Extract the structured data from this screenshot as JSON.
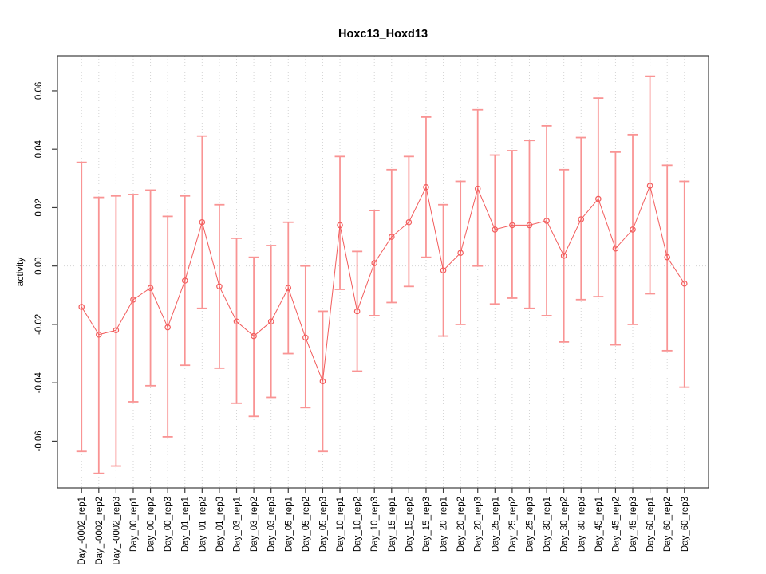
{
  "page": {
    "background": "#ffffff"
  },
  "chart_data": {
    "type": "line",
    "title": "Hoxc13_Hoxd13",
    "xlabel": "",
    "ylabel": "activity",
    "ylim": [
      -0.076,
      0.072
    ],
    "y_ticks": [
      -0.06,
      -0.04,
      -0.02,
      0,
      0.02,
      0.04,
      0.06
    ],
    "grid": "dotted light-gray vertical line at every category; dotted horizontal line at y=0",
    "legend": "none",
    "point_style": "open-circle",
    "error_bars": true,
    "categories": [
      "Day_-0002_rep1",
      "Day_-0002_rep2",
      "Day_-0002_rep3",
      "Day_00_rep1",
      "Day_00_rep2",
      "Day_00_rep3",
      "Day_01_rep1",
      "Day_01_rep2",
      "Day_01_rep3",
      "Day_03_rep1",
      "Day_03_rep2",
      "Day_03_rep3",
      "Day_05_rep1",
      "Day_05_rep2",
      "Day_05_rep3",
      "Day_10_rep1",
      "Day_10_rep2",
      "Day_10_rep3",
      "Day_15_rep1",
      "Day_15_rep2",
      "Day_15_rep3",
      "Day_20_rep1",
      "Day_20_rep2",
      "Day_20_rep3",
      "Day_25_rep1",
      "Day_25_rep2",
      "Day_25_rep3",
      "Day_30_rep1",
      "Day_30_rep2",
      "Day_30_rep3",
      "Day_45_rep1",
      "Day_45_rep2",
      "Day_45_rep3",
      "Day_60_rep1",
      "Day_60_rep2",
      "Day_60_rep3"
    ],
    "series": [
      {
        "name": "activity",
        "values": [
          -0.014,
          -0.0235,
          -0.022,
          -0.0115,
          -0.0075,
          -0.021,
          -0.005,
          0.015,
          -0.007,
          -0.019,
          -0.024,
          -0.019,
          -0.0075,
          -0.0245,
          -0.0395,
          0.014,
          -0.0155,
          0.001,
          0.01,
          0.015,
          0.027,
          -0.0015,
          0.0045,
          0.0265,
          0.0125,
          0.014,
          0.014,
          0.0155,
          0.0035,
          0.016,
          0.023,
          0.006,
          0.0125,
          0.0275,
          0.003,
          -0.006
        ],
        "err_high": [
          0.0355,
          0.0235,
          0.024,
          0.0245,
          0.026,
          0.017,
          0.024,
          0.0445,
          0.021,
          0.0095,
          0.003,
          0.007,
          0.015,
          0.0,
          -0.0155,
          0.0375,
          0.005,
          0.019,
          0.033,
          0.0375,
          0.051,
          0.021,
          0.029,
          0.0535,
          0.038,
          0.0395,
          0.043,
          0.048,
          0.033,
          0.044,
          0.0575,
          0.039,
          0.045,
          0.065,
          0.0345,
          0.029
        ],
        "err_low": [
          -0.0635,
          -0.071,
          -0.0685,
          -0.0465,
          -0.041,
          -0.0585,
          -0.034,
          -0.0145,
          -0.035,
          -0.047,
          -0.0515,
          -0.045,
          -0.03,
          -0.0485,
          -0.0635,
          -0.008,
          -0.036,
          -0.017,
          -0.0125,
          -0.007,
          0.003,
          -0.024,
          -0.02,
          0.0,
          -0.013,
          -0.011,
          -0.0145,
          -0.017,
          -0.026,
          -0.0115,
          -0.0105,
          -0.027,
          -0.02,
          -0.0095,
          -0.029,
          -0.0415
        ]
      }
    ],
    "colors": {
      "series": "#f25c5c",
      "error": "#f99494",
      "grid": "#d4d4d4",
      "border": "#3c3c3c",
      "title": "#000000"
    }
  }
}
